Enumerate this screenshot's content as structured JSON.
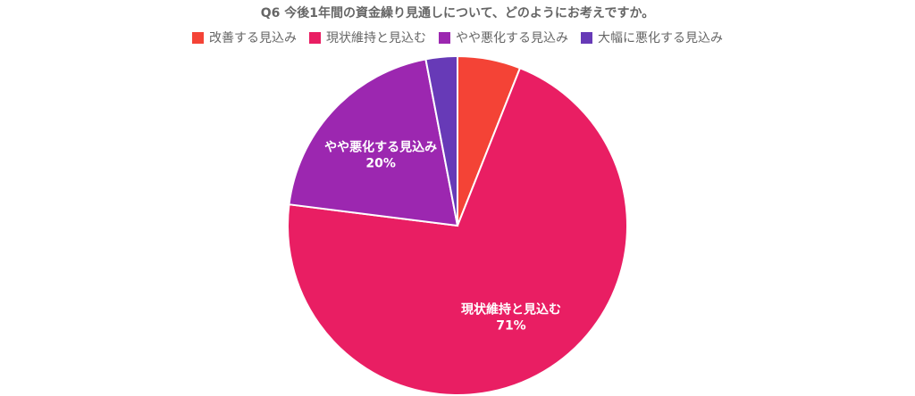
{
  "chart_data": {
    "type": "pie",
    "title": "Q6 今後1年間の資金繰り見通しについて、どのようにお考えですか。",
    "legend_position": "top",
    "categories": [
      "改善する見込み",
      "現状維持と見込む",
      "やや悪化する見込み",
      "大幅に悪化する見込み"
    ],
    "values": [
      6,
      71,
      20,
      3
    ],
    "data_labels": [
      "",
      "71%",
      "20%",
      ""
    ],
    "colors": [
      "#f44336",
      "#e91e63",
      "#9c27b0",
      "#673ab7"
    ]
  }
}
